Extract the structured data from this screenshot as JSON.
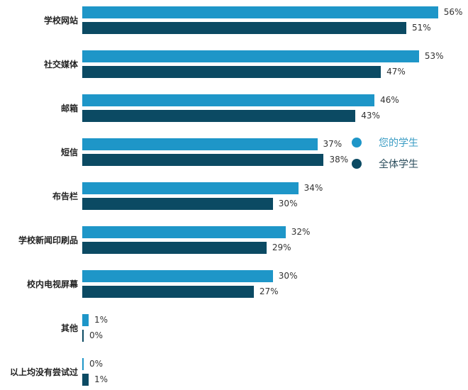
{
  "chart_data": {
    "type": "bar",
    "orientation": "horizontal",
    "title": "",
    "xlabel": "",
    "ylabel": "",
    "xlim": [
      0,
      60
    ],
    "grid": false,
    "legend_position": "right-middle",
    "categories": [
      "学校网站",
      "社交媒体",
      "邮箱",
      "短信",
      "布告栏",
      "学校新闻印刷品",
      "校内电视屏幕",
      "其他",
      "以上均没有尝试过"
    ],
    "series": [
      {
        "name": "您的学生",
        "color": "#1e96c8",
        "values": [
          56,
          53,
          46,
          37,
          34,
          32,
          30,
          1,
          0
        ]
      },
      {
        "name": "全体学生",
        "color": "#0b4a63",
        "values": [
          51,
          47,
          43,
          38,
          30,
          29,
          27,
          0,
          1
        ]
      }
    ],
    "value_labels": [
      [
        "56%",
        "53%",
        "46%",
        "37%",
        "34%",
        "32%",
        "30%",
        "1%",
        "0%"
      ],
      [
        "51%",
        "47%",
        "43%",
        "38%",
        "30%",
        "29%",
        "27%",
        "0%",
        "1%"
      ]
    ]
  },
  "legend": {
    "items": [
      {
        "label": "您的学生",
        "color": "#1e96c8",
        "text_color": "#3a9cc4"
      },
      {
        "label": "全体学生",
        "color": "#0b4a63",
        "text_color": "#2b4d5c"
      }
    ]
  }
}
